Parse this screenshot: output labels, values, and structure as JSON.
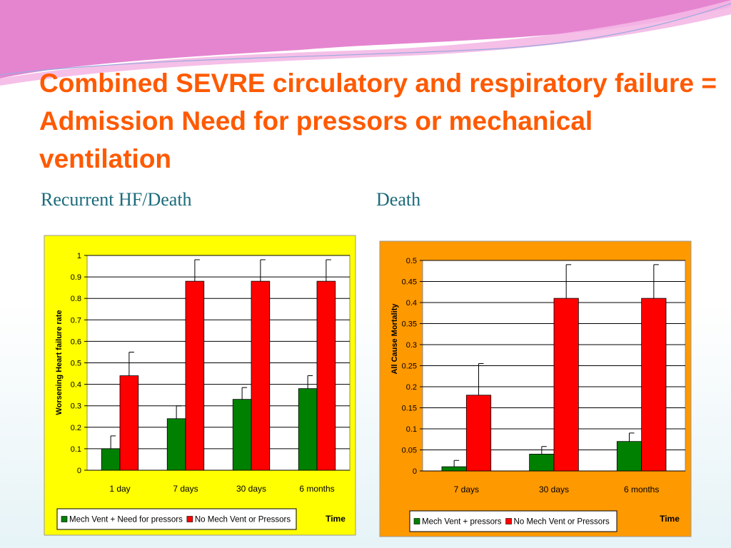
{
  "title": "Combined SEVRE circulatory and respiratory failure =  Admission Need for pressors or mechanical ventilation",
  "chart_data": [
    {
      "type": "bar",
      "title": "Recurrent HF/Death",
      "y_label": "Worsening Heart failure rate",
      "x_label": "Time",
      "categories": [
        "1 day",
        "7 days",
        "30 days",
        "6 months"
      ],
      "series": [
        {
          "name": "Mech Vent + Need for pressors",
          "color": "#008000",
          "values": [
            0.1,
            0.24,
            0.33,
            0.38
          ],
          "errors": [
            0.06,
            0.06,
            0.055,
            0.06
          ]
        },
        {
          "name": "No Mech Vent or Pressors",
          "color": "#ff0000",
          "values": [
            0.44,
            0.88,
            0.88,
            0.88
          ],
          "errors": [
            0.11,
            0.1,
            0.1,
            0.1
          ]
        }
      ],
      "ylim": [
        0,
        1
      ],
      "yticks": [
        0,
        0.1,
        0.2,
        0.3,
        0.4,
        0.5,
        0.6,
        0.7,
        0.8,
        0.9,
        1
      ],
      "grid": true,
      "background": "#ffff00"
    },
    {
      "type": "bar",
      "title": "Death",
      "y_label": "All Cause Mortality",
      "x_label": "Time",
      "categories": [
        "7 days",
        "30 days",
        "6 months"
      ],
      "series": [
        {
          "name": "Mech Vent + pressors",
          "color": "#008000",
          "values": [
            0.01,
            0.04,
            0.07
          ],
          "errors": [
            0.015,
            0.018,
            0.02
          ]
        },
        {
          "name": "No Mech Vent or Pressors",
          "color": "#ff0000",
          "values": [
            0.18,
            0.41,
            0.41
          ],
          "errors": [
            0.075,
            0.08,
            0.08
          ]
        }
      ],
      "ylim": [
        0,
        0.5
      ],
      "yticks": [
        0,
        0.05,
        0.1,
        0.15,
        0.2,
        0.25,
        0.3,
        0.35,
        0.4,
        0.45,
        0.5
      ],
      "grid": true,
      "background": "#ff9900"
    }
  ]
}
